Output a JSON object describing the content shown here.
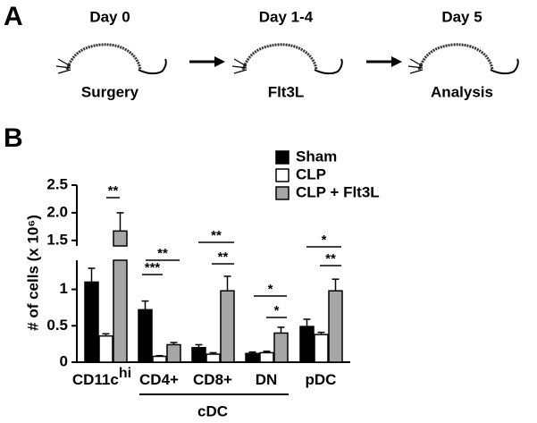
{
  "panel_a": {
    "label": "A",
    "steps": [
      {
        "day": "Day 0",
        "label": "Surgery"
      },
      {
        "day": "Day 1-4",
        "label": "Flt3L"
      },
      {
        "day": "Day 5",
        "label": "Analysis"
      }
    ]
  },
  "chart_data": {
    "type": "bar",
    "panel_label": "B",
    "y_label": "# of cells (x 10⁶)",
    "categories": [
      "CD11c",
      "CD4+",
      "CD8+",
      "DN",
      "pDC"
    ],
    "category_superscripts": [
      "hi",
      null,
      null,
      null,
      null
    ],
    "group_label": "cDC",
    "series": [
      {
        "name": "Sham",
        "color": "#000000",
        "values": [
          1.1,
          0.72,
          0.2,
          0.12,
          0.49
        ],
        "errors": [
          0.19,
          0.12,
          0.04,
          0.02,
          0.1
        ]
      },
      {
        "name": "CLP",
        "color": "#ffffff",
        "values": [
          0.36,
          0.08,
          0.11,
          0.13,
          0.38
        ],
        "errors": [
          0.03,
          0.01,
          0.02,
          0.02,
          0.03
        ]
      },
      {
        "name": "CLP + Flt3L",
        "color": "#a6a6a6",
        "values": [
          1.67,
          0.24,
          0.98,
          0.4,
          0.98
        ],
        "errors": [
          0.33,
          0.03,
          0.2,
          0.08,
          0.16
        ]
      }
    ],
    "ylim_lower": [
      0,
      1.4
    ],
    "yticks_lower": [
      0,
      0.5,
      1
    ],
    "ylim_upper": [
      1.4,
      2.5
    ],
    "yticks_upper": [
      1.5,
      {
        "value": 2,
        "label": "2.0"
      },
      2.5
    ],
    "annotations": [
      "**",
      "**",
      "***",
      "**",
      "**",
      "*",
      "*",
      "*",
      "**"
    ],
    "legend": "top-right"
  }
}
